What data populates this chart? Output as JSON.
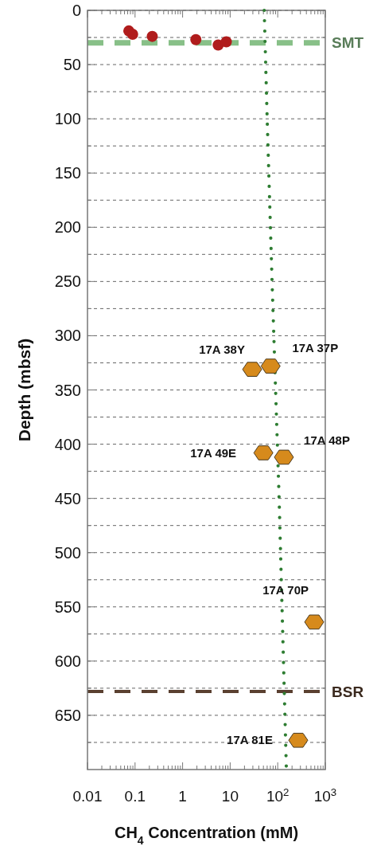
{
  "chart_data": {
    "type": "scatter",
    "xlabel": "CH$_{4}$ Concentration (mM)",
    "ylabel": "Depth (mbsf)",
    "log": "x",
    "grid": "y",
    "xlim": [
      0.01,
      1000
    ],
    "ylim": [
      700,
      0
    ],
    "xticks": [
      0.01,
      {
        "value": 0.02,
        "label": null
      },
      {
        "value": 0.03,
        "label": null
      },
      {
        "value": 0.04,
        "label": null
      },
      {
        "value": 0.05,
        "label": null
      },
      {
        "value": 0.06,
        "label": null
      },
      {
        "value": 0.07,
        "label": null
      },
      {
        "value": 0.08,
        "label": null
      },
      {
        "value": 0.09,
        "label": null
      },
      0.1,
      {
        "value": 0.2,
        "label": null
      },
      {
        "value": 0.3,
        "label": null
      },
      {
        "value": 0.4,
        "label": null
      },
      {
        "value": 0.5,
        "label": null
      },
      {
        "value": 0.6,
        "label": null
      },
      {
        "value": 0.7,
        "label": null
      },
      {
        "value": 0.8,
        "label": null
      },
      {
        "value": 0.9,
        "label": null
      },
      1,
      {
        "value": 2,
        "label": null
      },
      {
        "value": 3,
        "label": null
      },
      {
        "value": 4,
        "label": null
      },
      {
        "value": 5,
        "label": null
      },
      {
        "value": 6,
        "label": null
      },
      {
        "value": 7,
        "label": null
      },
      {
        "value": 8,
        "label": null
      },
      {
        "value": 9,
        "label": null
      },
      10,
      {
        "value": 20,
        "label": null
      },
      {
        "value": 30,
        "label": null
      },
      {
        "value": 40,
        "label": null
      },
      {
        "value": 50,
        "label": null
      },
      {
        "value": 60,
        "label": null
      },
      {
        "value": 70,
        "label": null
      },
      {
        "value": 80,
        "label": null
      },
      {
        "value": 90,
        "label": null
      },
      {
        "value": 100,
        "label": "10$^{2}$"
      },
      {
        "value": 200,
        "label": null
      },
      {
        "value": 300,
        "label": null
      },
      {
        "value": 400,
        "label": null
      },
      {
        "value": 500,
        "label": null
      },
      {
        "value": 600,
        "label": null
      },
      {
        "value": 700,
        "label": null
      },
      {
        "value": 800,
        "label": null
      },
      {
        "value": 900,
        "label": null
      },
      {
        "value": 1000,
        "label": "10$^{3}$"
      }
    ],
    "yticks": [
      0,
      {
        "value": 25,
        "label": null
      },
      50,
      {
        "value": 75,
        "label": null
      },
      100,
      {
        "value": 125,
        "label": null
      },
      150,
      {
        "value": 175,
        "label": null
      },
      200,
      {
        "value": 225,
        "label": null
      },
      250,
      {
        "value": 275,
        "label": null
      },
      300,
      {
        "value": 325,
        "label": null
      },
      350,
      {
        "value": 375,
        "label": null
      },
      400,
      {
        "value": 425,
        "label": null
      },
      450,
      {
        "value": 475,
        "label": null
      },
      500,
      {
        "value": 525,
        "label": null
      },
      550,
      {
        "value": 575,
        "label": null
      },
      600,
      {
        "value": 625,
        "label": null
      },
      650,
      {
        "value": 675,
        "label": null
      }
    ],
    "series": [
      {
        "type": "line",
        "color": "#2e7d32",
        "line_style": "dotted",
        "marker": "none",
        "x": [
          52,
          60,
          76,
          107,
          152
        ],
        "values": [
          0,
          100,
          250,
          450,
          700
        ]
      },
      {
        "type": "scatter",
        "color": "#b01c1c",
        "marker": "circle",
        "x": [
          0.074,
          0.089,
          0.23,
          1.9,
          5.6,
          8.3
        ],
        "values": [
          19,
          22,
          24,
          27,
          32,
          29
        ]
      },
      {
        "color": "#d68a1c",
        "x": [
          29,
          71,
          50,
          135,
          585,
          270
        ],
        "values": [
          331,
          328,
          408,
          412,
          564,
          673
        ]
      }
    ],
    "ref_lines": [
      {
        "axis": "y",
        "value": 30,
        "label": "SMT",
        "color": "#88c088",
        "line_style": "dashed"
      },
      {
        "axis": "y",
        "value": 628,
        "label": "BSR",
        "color": "#5a4030",
        "line_style": "dashed"
      }
    ],
    "annotations": [
      {
        "text": "17A 38Y",
        "x": 29,
        "y": 331
      },
      {
        "text": "17A 37P",
        "x": 71,
        "y": 328
      },
      {
        "text": "17A 49E",
        "x": 50,
        "y": 408
      },
      {
        "text": "17A 48P",
        "x": 135,
        "y": 412
      },
      {
        "text": "17A 70P",
        "x": 585,
        "y": 564
      },
      {
        "text": "17A 81E",
        "x": 270,
        "y": 673
      }
    ]
  }
}
